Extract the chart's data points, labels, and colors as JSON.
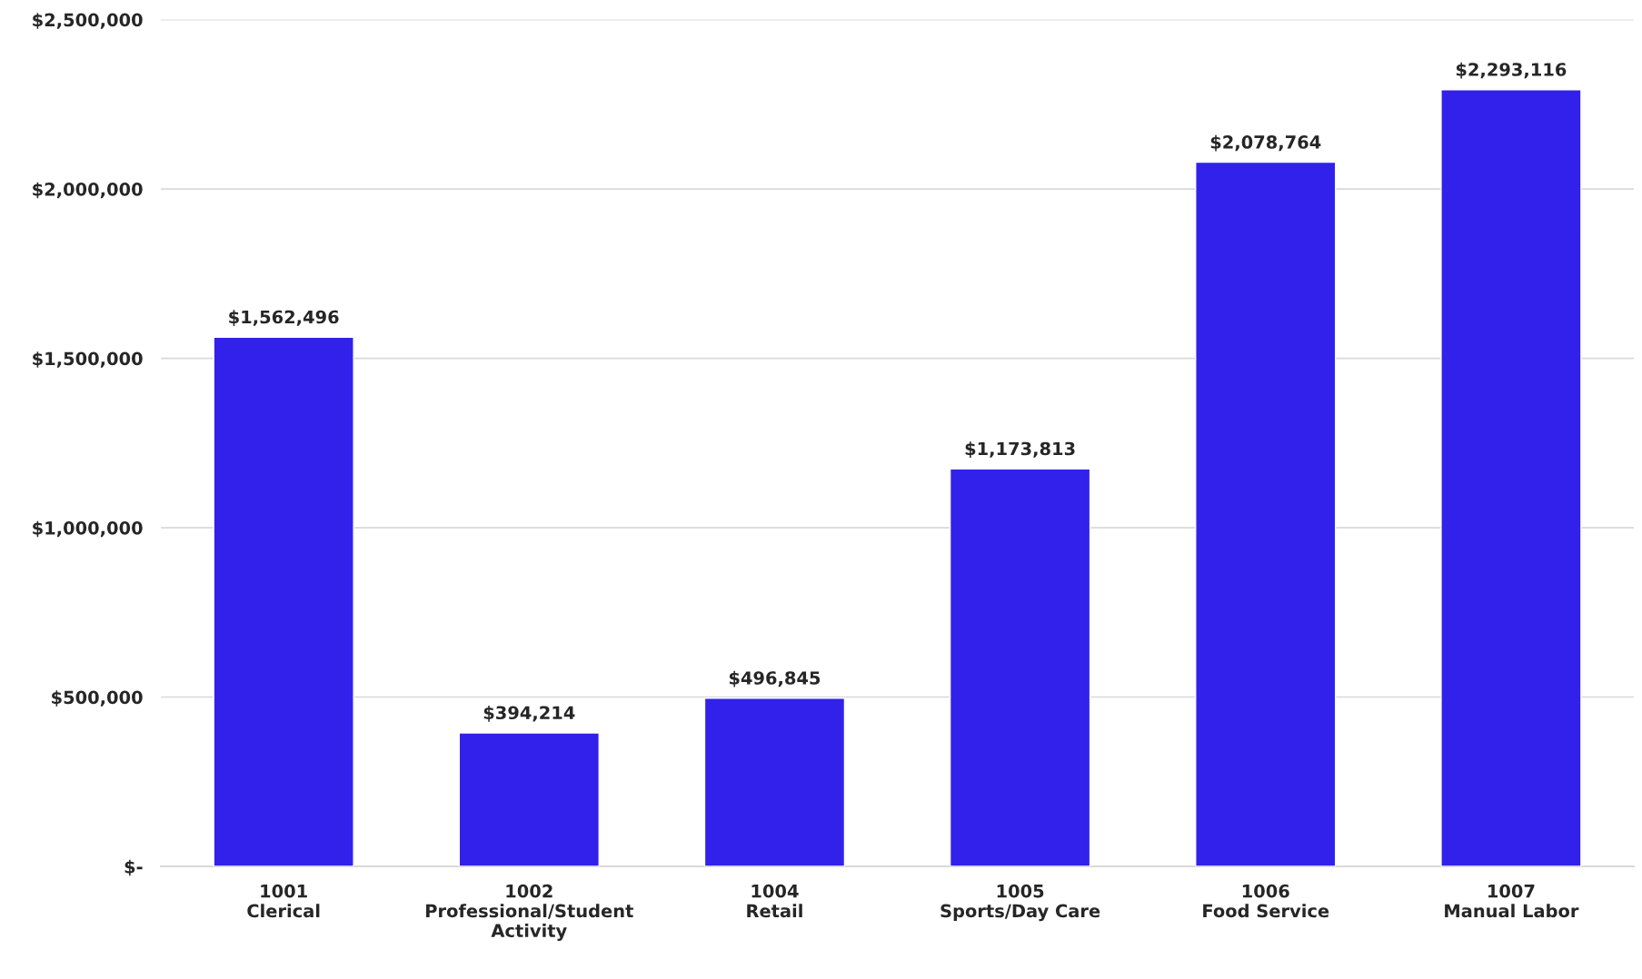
{
  "chart_data": {
    "type": "bar",
    "categories": [
      "1001\nClerical",
      "1002\nProfessional/Student\nActivity",
      "1004\nRetail",
      "1005\nSports/Day Care",
      "1006\nFood Service",
      "1007\nManual Labor"
    ],
    "values": [
      1562496,
      394214,
      496845,
      1173813,
      2078764,
      2293116
    ],
    "value_labels": [
      "$1,562,496",
      "$394,214",
      "$496,845",
      "$1,173,813",
      "$2,078,764",
      "$2,293,116"
    ],
    "color": "#3121eb",
    "ylim": [
      0,
      2500000
    ],
    "yticks": [
      {
        "value": 0,
        "label": "$-"
      },
      {
        "value": 500000,
        "label": "$500,000"
      },
      {
        "value": 1000000,
        "label": "$1,000,000"
      },
      {
        "value": 1500000,
        "label": "$1,500,000"
      },
      {
        "value": 2000000,
        "label": "$2,000,000"
      },
      {
        "value": 2500000,
        "label": "$2,500,000"
      }
    ],
    "grid": "y"
  }
}
